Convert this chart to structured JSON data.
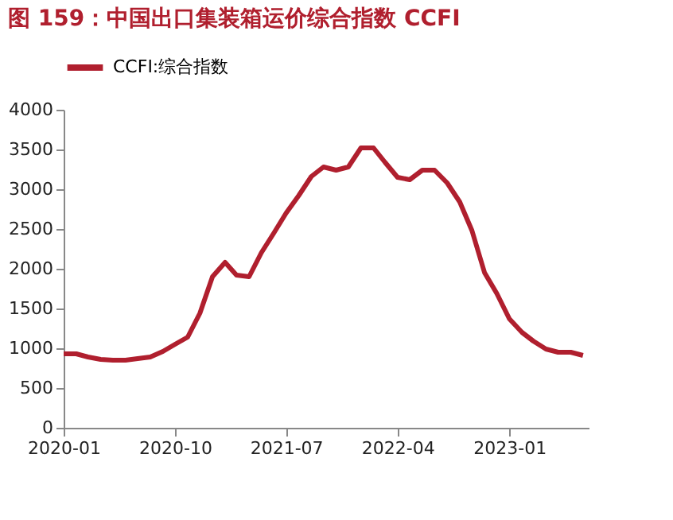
{
  "chart_data": {
    "type": "line",
    "title": "图 159：中国出口集装箱运价综合指数 CCFI",
    "x": [
      "2020-01",
      "2020-02",
      "2020-03",
      "2020-04",
      "2020-05",
      "2020-06",
      "2020-07",
      "2020-08",
      "2020-09",
      "2020-10",
      "2020-11",
      "2020-12",
      "2021-01",
      "2021-02",
      "2021-03",
      "2021-04",
      "2021-05",
      "2021-06",
      "2021-07",
      "2021-08",
      "2021-09",
      "2021-10",
      "2021-11",
      "2021-12",
      "2022-01",
      "2022-02",
      "2022-03",
      "2022-04",
      "2022-05",
      "2022-06",
      "2022-07",
      "2022-08",
      "2022-09",
      "2022-10",
      "2022-11",
      "2022-12",
      "2023-01",
      "2023-02",
      "2023-03",
      "2023-04",
      "2023-05",
      "2023-06",
      "2023-07"
    ],
    "series": [
      {
        "name": "CCFI:综合指数",
        "color": "#b01f2e",
        "values": [
          930,
          930,
          890,
          860,
          850,
          850,
          870,
          890,
          960,
          1050,
          1140,
          1440,
          1900,
          2080,
          1920,
          1900,
          2200,
          2450,
          2700,
          2920,
          3160,
          3280,
          3240,
          3280,
          3520,
          3520,
          3340,
          3150,
          3120,
          3240,
          3240,
          3080,
          2840,
          2480,
          1950,
          1690,
          1370,
          1200,
          1090,
          990,
          950,
          950,
          910
        ]
      }
    ],
    "xlim": [
      "2020-01",
      "2023-07-15"
    ],
    "xticks": [
      "2020-01",
      "2020-10",
      "2021-07",
      "2022-04",
      "2023-01"
    ],
    "ylim": [
      0,
      4000
    ],
    "yticks": [
      0,
      500,
      1000,
      1500,
      2000,
      2500,
      3000,
      3500,
      4000
    ],
    "grid": false,
    "legend": "top",
    "line_style": "solid",
    "marker": "none"
  }
}
